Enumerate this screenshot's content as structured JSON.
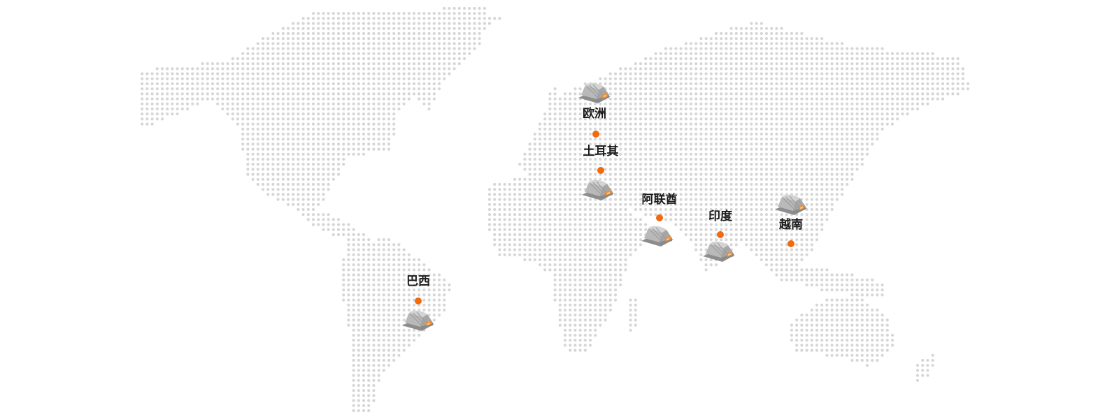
{
  "map": {
    "dot_color": "#d6d6d6",
    "accent_color": "#f26a10",
    "marker_icon": "factory-shed-icon"
  },
  "locations": [
    {
      "id": "europe",
      "label": "欧洲"
    },
    {
      "id": "turkey",
      "label": "土耳其"
    },
    {
      "id": "uae",
      "label": "阿联酋"
    },
    {
      "id": "india",
      "label": "印度"
    },
    {
      "id": "vietnam",
      "label": "越南"
    },
    {
      "id": "brazil",
      "label": "巴西"
    }
  ]
}
